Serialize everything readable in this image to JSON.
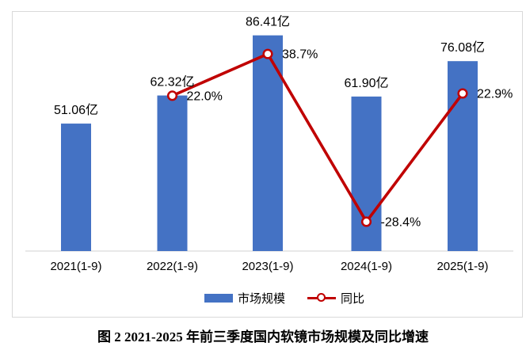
{
  "chart_data": {
    "type": "combo-bar-line",
    "categories": [
      "2021(1-9)",
      "2022(1-9)",
      "2023(1-9)",
      "2024(1-9)",
      "2025(1-9)"
    ],
    "series": [
      {
        "name": "市场规模",
        "kind": "bar",
        "unit": "亿",
        "values": [
          51.06,
          62.32,
          86.41,
          61.9,
          76.08
        ],
        "labels": [
          "51.06亿",
          "62.32亿",
          "86.41亿",
          "61.90亿",
          "76.08亿"
        ]
      },
      {
        "name": "同比",
        "kind": "line",
        "unit": "%",
        "values": [
          null,
          22.0,
          38.7,
          -28.4,
          22.9
        ],
        "labels": [
          null,
          "22.0%",
          "38.7%",
          "-28.4%",
          "22.9%"
        ]
      }
    ],
    "title": "图 2 2021-2025 年前三季度国内软镜市场规模及同比增速",
    "legend_position": "bottom",
    "grid": false,
    "bar_axis_range": [
      0,
      96
    ],
    "line_axis_range": [
      -40,
      45
    ]
  },
  "legend": {
    "items": [
      {
        "label": "市场规模",
        "swatch": "bar"
      },
      {
        "label": "同比",
        "swatch": "line"
      }
    ]
  },
  "caption": "图 2 2021-2025 年前三季度国内软镜市场规模及同比增速",
  "colors": {
    "bar": "#4472c4",
    "line": "#c00000",
    "marker_fill": "#ffffff",
    "axis_line": "#d9d9d9",
    "chart_border": "#d9d9d9",
    "label_text": "#000000",
    "background": "#ffffff"
  }
}
